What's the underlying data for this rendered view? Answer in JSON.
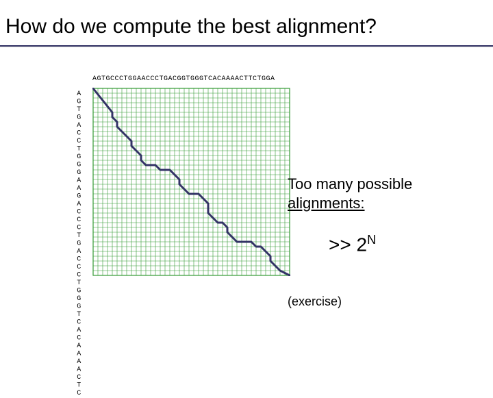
{
  "title": "How do we compute the best alignment?",
  "seq_top": "AGTGCCCTGGAACCCTGACGGTGGGTCACAAAACTTCTGGA",
  "seq_left": "AGTGACCTGGGAAGACCCTGACCCTGGGTCACAAAACTC",
  "right": {
    "line1": "Too many possible",
    "line2": "alignments:",
    "big_prefix": ">> 2",
    "big_exp": "N",
    "exercise": "(exercise)"
  },
  "grid": {
    "cols": 41,
    "rows": 39,
    "cell": 7,
    "color_grid": "#339933",
    "bg": "#ffffff",
    "path_color": "#333366",
    "path_width": 3,
    "path_points": [
      [
        0,
        0
      ],
      [
        4,
        5
      ],
      [
        4,
        6
      ],
      [
        5,
        7
      ],
      [
        5,
        8
      ],
      [
        6,
        9
      ],
      [
        8,
        11
      ],
      [
        8,
        12
      ],
      [
        10,
        14
      ],
      [
        10,
        15
      ],
      [
        11,
        16
      ],
      [
        13,
        16
      ],
      [
        14,
        17
      ],
      [
        16,
        17
      ],
      [
        18,
        19
      ],
      [
        18,
        20
      ],
      [
        20,
        22
      ],
      [
        22,
        22
      ],
      [
        23,
        23
      ],
      [
        24,
        24
      ],
      [
        24,
        26
      ],
      [
        26,
        28
      ],
      [
        27,
        28
      ],
      [
        28,
        29
      ],
      [
        28,
        30
      ],
      [
        30,
        32
      ],
      [
        33,
        32
      ],
      [
        34,
        33
      ],
      [
        35,
        33
      ],
      [
        37,
        35
      ],
      [
        37,
        36
      ],
      [
        39,
        38
      ],
      [
        41,
        39
      ]
    ]
  },
  "colors": {
    "rule": "#333366"
  },
  "fonts": {
    "title_size": 30,
    "body_size": 22,
    "mono_size": 10
  }
}
